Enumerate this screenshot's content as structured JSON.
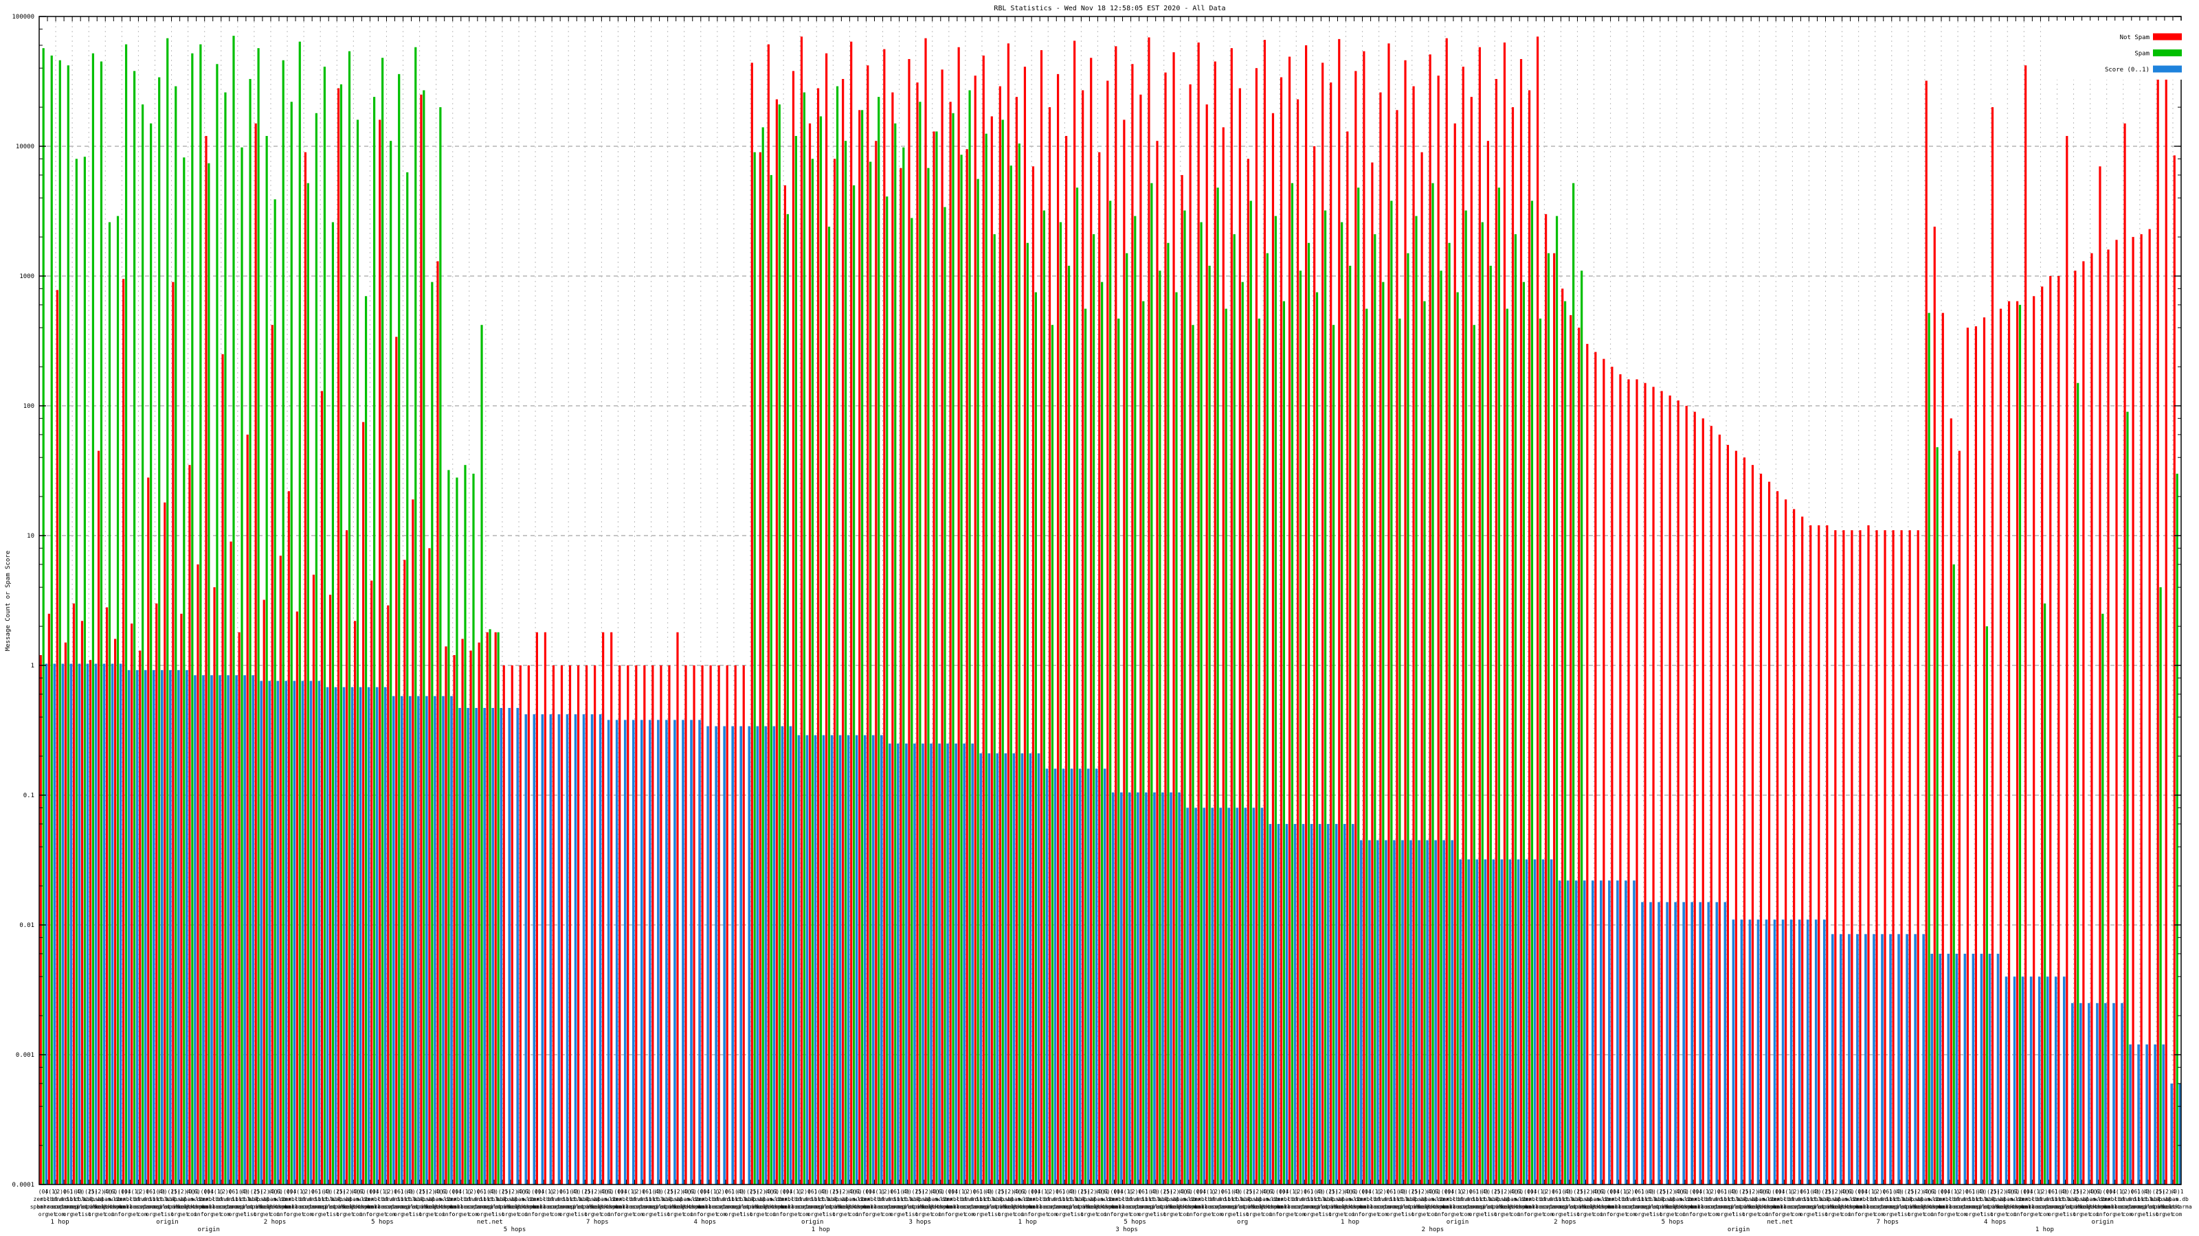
{
  "chart_data": {
    "type": "bar",
    "title": "RBL Statistics - Wed Nov 18 12:58:05 EST 2020 - All Data",
    "ylabel": "Message Count or Spam Score",
    "xlabel": "",
    "y_scale": "log10",
    "ylim": [
      0.0001,
      100000
    ],
    "y_tick_labels": [
      "100000",
      "10000",
      "1000",
      "100",
      "10",
      "1",
      "0.1",
      "0.01",
      "0.001",
      "0.0001"
    ],
    "grid": "dashed-gray-both-axes",
    "legend_position": "top-right-inside",
    "groups": 259,
    "legend": [
      {
        "label": "Not Spam",
        "color": "#ff0000"
      },
      {
        "label": "Spam",
        "color": "#00bf00"
      },
      {
        "label": "Score (0..1)",
        "color": "#1e82dc"
      }
    ],
    "series": [
      {
        "name": "Not Spam",
        "color": "#ff0000",
        "runs": [
          1.2,
          2.5,
          780,
          1.5,
          3,
          2.2,
          1.1,
          45,
          2.8,
          1.6,
          950,
          2.1,
          1.3,
          28,
          3,
          18,
          900,
          2.5,
          35,
          6,
          12000,
          4,
          250,
          9,
          1.8,
          60,
          15000,
          3.2,
          420,
          7,
          22,
          2.6,
          9000,
          5,
          130,
          3.5,
          28000,
          11,
          2.2,
          75,
          4.5,
          16000,
          2.9,
          340,
          6.5,
          19,
          25000,
          8,
          1300,
          1.4,
          1.2,
          1.6,
          1.3,
          1.5,
          1.8,
          1.8,
          [
            4,
            1
          ],
          [
            2,
            1.8
          ],
          [
            6,
            1
          ],
          [
            2,
            1.8
          ],
          [
            3,
            1
          ],
          [
            4,
            1
          ],
          1.8,
          [
            8,
            1
          ],
          44000,
          9000,
          61000,
          23000,
          5000,
          38000,
          70000,
          15000,
          28000,
          52000,
          8000,
          33000,
          64000,
          19000,
          42000,
          11000,
          56000,
          26000,
          6800,
          47000,
          31000,
          68000,
          13000,
          39000,
          22000,
          58000,
          9500,
          35000,
          50000,
          17000,
          29000,
          62000,
          24000,
          41000,
          7000,
          55000,
          20000,
          36000,
          12000,
          65000,
          27000,
          48000,
          9000,
          32000,
          59000,
          16000,
          43000,
          25000,
          69000,
          11000,
          37000,
          53000,
          6000,
          30000,
          63000,
          21000,
          45000,
          14000,
          57000,
          28000,
          8000,
          40000,
          66000,
          18000,
          34000,
          49000,
          23000,
          60000,
          10000,
          44000,
          31000,
          67000,
          13000,
          38000,
          54000,
          7500,
          26000,
          62000,
          19000,
          46000,
          29000,
          9000,
          51000,
          35000,
          68000,
          15000,
          41000,
          24000,
          58000,
          11000,
          33000,
          63000,
          20000,
          47000,
          27000,
          70000,
          3000,
          1500,
          800,
          500,
          400,
          300,
          260,
          230,
          200,
          175,
          160,
          160,
          150,
          140,
          130,
          120,
          110,
          100,
          90,
          80,
          70,
          60,
          50,
          45,
          40,
          35,
          30,
          26,
          22,
          19,
          16,
          14,
          [
            3,
            12
          ],
          [
            4,
            11
          ],
          12,
          [
            6,
            11
          ],
          32000,
          2400,
          520,
          80,
          45,
          400,
          410,
          480,
          20000,
          560,
          640,
          640,
          42000,
          700,
          830,
          1000,
          1000,
          12000,
          1100,
          1300,
          1500,
          7000,
          1600,
          1900,
          15000,
          2000,
          2100,
          2300,
          48000,
          52000,
          8500
        ]
      },
      {
        "name": "Spam",
        "color": "#00bf00",
        "runs": [
          57000,
          50000,
          46000,
          42000,
          8000,
          8300,
          52000,
          45000,
          2600,
          2900,
          61000,
          38000,
          21000,
          15000,
          34000,
          68000,
          29000,
          8200,
          52000,
          61000,
          7400,
          43000,
          26000,
          71000,
          9800,
          33000,
          57000,
          12000,
          3900,
          46000,
          22000,
          64000,
          5200,
          18000,
          41000,
          2600,
          30000,
          54000,
          16000,
          700,
          24000,
          48000,
          11000,
          36000,
          6300,
          58000,
          27000,
          900,
          20000,
          32,
          28,
          35,
          30,
          420,
          1.9,
          1.8,
          [
            17,
            null
          ],
          [
            13,
            null
          ],
          9000,
          14000,
          6000,
          21000,
          3000,
          12000,
          26000,
          8000,
          17000,
          2400,
          29000,
          11000,
          5000,
          19000,
          7600,
          24000,
          4100,
          15000,
          9800,
          2800,
          22000,
          6800,
          13000,
          3400,
          18000,
          8600,
          27000,
          5600,
          12500,
          2100,
          16000,
          7100,
          10500,
          1800,
          750,
          3200,
          420,
          2600,
          1200,
          4800,
          560,
          2100,
          900,
          3800,
          470,
          1500,
          2900,
          640,
          5200,
          1100,
          1800,
          750,
          3200,
          420,
          2600,
          1200,
          4800,
          560,
          2100,
          900,
          3800,
          470,
          1500,
          2900,
          640,
          5200,
          1100,
          1800,
          750,
          3200,
          420,
          2600,
          1200,
          4800,
          560,
          2100,
          900,
          3800,
          470,
          1500,
          2900,
          640,
          5200,
          1100,
          1800,
          750,
          3200,
          420,
          2600,
          1200,
          4800,
          560,
          2100,
          900,
          3800,
          470,
          1500,
          2900,
          640,
          5200,
          1100,
          [
            27,
            null
          ],
          [
            14,
            null
          ],
          520,
          48,
          null,
          6,
          null,
          [
            2,
            null
          ],
          2,
          [
            3,
            null
          ],
          600,
          [
            2,
            null
          ],
          3,
          [
            3,
            null
          ],
          150,
          [
            2,
            null
          ],
          2.5,
          [
            2,
            null
          ],
          90,
          [
            3,
            null
          ],
          4,
          null,
          30
        ]
      },
      {
        "name": "Score (0..1)",
        "color": "#1e82dc",
        "runs": [
          [
            10,
            1.03
          ],
          [
            8,
            0.92
          ],
          [
            8,
            0.84
          ],
          [
            8,
            0.76
          ],
          [
            8,
            0.68
          ],
          [
            8,
            0.58
          ],
          [
            8,
            0.47
          ],
          [
            10,
            0.42
          ],
          [
            12,
            0.38
          ],
          [
            11,
            0.34
          ],
          [
            11,
            0.29
          ],
          [
            11,
            0.25
          ],
          [
            8,
            0.21
          ],
          [
            8,
            0.16
          ],
          [
            9,
            0.105
          ],
          [
            10,
            0.08
          ],
          [
            11,
            0.06
          ],
          [
            12,
            0.045
          ],
          [
            12,
            0.032
          ],
          [
            10,
            0.022
          ],
          [
            11,
            0.015
          ],
          [
            12,
            0.011
          ],
          [
            12,
            0.0085
          ],
          [
            9,
            0.006
          ],
          [
            8,
            0.004
          ],
          [
            7,
            0.0025
          ],
          [
            5,
            0.0012
          ],
          [
            2,
            0.0006
          ]
        ]
      }
    ],
    "x_tick_labels_illegible": true,
    "x_label_rows": {
      "row1": [
        "(0)",
        "4(1)",
        "(2)0",
        "(6)",
        "1(4)",
        "(0)(2)",
        "(5)",
        "(2)4",
        "(0)1",
        "(6)(0)"
      ],
      "row2": [
        "zen.ch",
        "rbl.dns",
        "bl.sc",
        "dnsbl",
        "list.b",
        "cbl.ab",
        "xbl.vz",
        "psbl.s",
        "spam.db",
        "wl.mx"
      ],
      "row3": [
        "spamhaus",
        "barracuda",
        "sorbs",
        "spamcop",
        "uceprot",
        "mailspike",
        "surriel",
        "abuseat",
        "hostkarma",
        "junkemail"
      ],
      "row4": [
        "org",
        "net",
        "com",
        "org",
        "net",
        "list",
        "org",
        "net",
        "com",
        "info"
      ],
      "row5": [
        "1 hop",
        "origin",
        "2 hops",
        "5 hops",
        "net.net",
        "7 hops",
        "4 hops",
        "origin",
        "3 hops",
        "1 hop",
        "5 hops",
        "org"
      ],
      "row6": [
        "origin",
        "5 hops",
        "1 hop",
        "3 hops",
        "2 hops",
        "origin",
        "1 hop"
      ]
    },
    "legible_sub_label_fragments": [
      "1 hop",
      "2 hops",
      "3 hops",
      "4 hops",
      "5 hops",
      "7 hops",
      "origin",
      "net.net",
      "net",
      "org",
      "list"
    ]
  }
}
